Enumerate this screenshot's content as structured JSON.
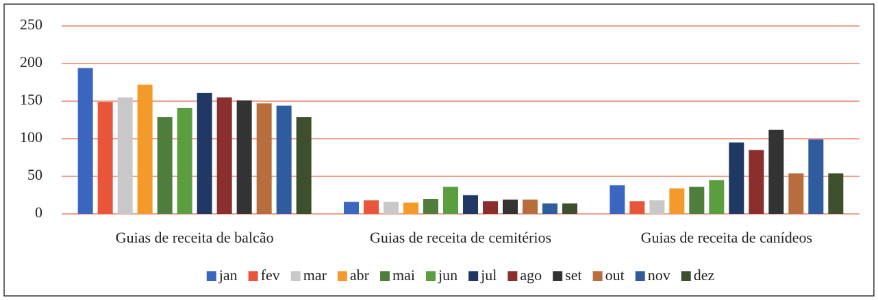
{
  "chart_data": {
    "type": "bar",
    "categories": [
      "Guias de receita de balcão",
      "Guias de receita de cemitérios",
      "Guias de receita de canídeos"
    ],
    "series": [
      {
        "name": "jan",
        "color": "#3a66c0",
        "values": [
          194,
          16,
          38
        ]
      },
      {
        "name": "fev",
        "color": "#e8553a",
        "values": [
          149,
          18,
          17
        ]
      },
      {
        "name": "mar",
        "color": "#c8c8c8",
        "values": [
          155,
          16,
          18
        ]
      },
      {
        "name": "abr",
        "color": "#f39a2b",
        "values": [
          172,
          15,
          34
        ]
      },
      {
        "name": "mai",
        "color": "#4e7d3c",
        "values": [
          129,
          20,
          36
        ]
      },
      {
        "name": "jun",
        "color": "#5a9e40",
        "values": [
          141,
          36,
          45
        ]
      },
      {
        "name": "jul",
        "color": "#1f3864",
        "values": [
          161,
          25,
          95
        ]
      },
      {
        "name": "ago",
        "color": "#8b2e2e",
        "values": [
          155,
          17,
          85
        ]
      },
      {
        "name": "set",
        "color": "#333333",
        "values": [
          151,
          19,
          112
        ]
      },
      {
        "name": "out",
        "color": "#b86d3c",
        "values": [
          147,
          19,
          54
        ]
      },
      {
        "name": "nov",
        "color": "#2e5c9e",
        "values": [
          144,
          14,
          99
        ]
      },
      {
        "name": "dez",
        "color": "#3d4f2c",
        "values": [
          129,
          14,
          54
        ]
      }
    ],
    "ylim": [
      0,
      250
    ],
    "yticks": [
      0,
      50,
      100,
      150,
      200,
      250
    ],
    "grid": true,
    "grid_color": "#e8806e",
    "legend": "bottom"
  }
}
